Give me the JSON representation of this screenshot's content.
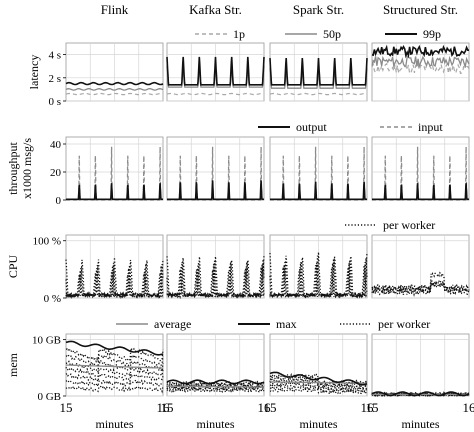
{
  "chart_data": {
    "type": "line",
    "columns": [
      "Flink",
      "Kafka Str.",
      "Spark Str.",
      "Structured Str."
    ],
    "x": {
      "label": "minutes",
      "range": [
        15,
        16
      ],
      "ticks": [
        "15",
        "16"
      ]
    },
    "rows": [
      {
        "id": "latency",
        "ylabel": "latency",
        "ylim": [
          0,
          5
        ],
        "ticks": [
          {
            "v": 0,
            "label": "0 s"
          },
          {
            "v": 2,
            "label": "2 s"
          },
          {
            "v": 4,
            "label": "4 s"
          }
        ],
        "legend": [
          {
            "name": "1p",
            "style": "dashed-light"
          },
          {
            "name": "50p",
            "style": "solid-gray"
          },
          {
            "name": "99p",
            "style": "solid-black"
          }
        ],
        "legend_placement": "top",
        "series_per_framework": [
          {
            "p1": 0.6,
            "p50": 1.0,
            "p99": 1.5,
            "pattern": "flat"
          },
          {
            "p1": 0.6,
            "p50": 1.2,
            "p99": 1.4,
            "p99_peak": 3.8,
            "p50_peak": 3.0,
            "pattern": "periodic-spikes"
          },
          {
            "p1": 0.6,
            "p50": 1.1,
            "p99": 1.4,
            "p99_peak": 3.7,
            "p50_peak": 2.8,
            "pattern": "periodic-spikes"
          },
          {
            "p1": 2.8,
            "p50": 3.4,
            "p99": 4.3,
            "pattern": "noisy-high"
          }
        ]
      },
      {
        "id": "throughput",
        "ylabel": "throughput",
        "ylabel2": "x1000 msg/s",
        "ylim": [
          0,
          45
        ],
        "ticks": [
          {
            "v": 0,
            "label": "0"
          },
          {
            "v": 20,
            "label": "20"
          },
          {
            "v": 40,
            "label": "40"
          }
        ],
        "legend": [
          {
            "name": "output",
            "style": "solid-black"
          },
          {
            "name": "input",
            "style": "dashed-gray"
          }
        ],
        "legend_placement": "top-right",
        "series_per_framework": [
          {
            "input_peak": 38,
            "output_peak": 12,
            "pattern": "bursts"
          },
          {
            "input_peak": 38,
            "output_peak": 14,
            "pattern": "bursts"
          },
          {
            "input_peak": 38,
            "output_peak": 13,
            "pattern": "bursts"
          },
          {
            "input_peak": 38,
            "output_peak": 12,
            "pattern": "bursts"
          }
        ]
      },
      {
        "id": "cpu",
        "ylabel": "CPU",
        "ylim": [
          0,
          110
        ],
        "ticks": [
          {
            "v": 0,
            "label": "0 %"
          },
          {
            "v": 100,
            "label": "100 %"
          }
        ],
        "legend": [
          {
            "name": "per worker",
            "style": "dotted-black"
          }
        ],
        "legend_placement": "top-right",
        "series_per_framework": [
          {
            "base": 5,
            "peak": 70,
            "pattern": "periodic-peaks"
          },
          {
            "base": 5,
            "peak": 75,
            "pattern": "periodic-peaks"
          },
          {
            "base": 5,
            "peak": 80,
            "pattern": "periodic-peaks"
          },
          {
            "base": 10,
            "peak": 40,
            "pattern": "low-noisy"
          }
        ]
      },
      {
        "id": "mem",
        "ylabel": "mem",
        "ylim": [
          0,
          11
        ],
        "ticks": [
          {
            "v": 0,
            "label": "0 GB"
          },
          {
            "v": 10,
            "label": "10 GB"
          }
        ],
        "legend": [
          {
            "name": "average",
            "style": "solid-gray"
          },
          {
            "name": "max",
            "style": "solid-black"
          },
          {
            "name": "per worker",
            "style": "dotted-black"
          }
        ],
        "legend_placement": "top",
        "series_per_framework": [
          {
            "max_start": 9.5,
            "max_end": 7.5,
            "worker_min": 1.5,
            "pattern": "sawtooth"
          },
          {
            "max_start": 2.5,
            "max_end": 2.5,
            "worker_min": 1.0,
            "pattern": "flat"
          },
          {
            "max_start": 4.0,
            "max_end": 2.2,
            "worker_min": 1.0,
            "pattern": "dip"
          },
          {
            "max_start": 0.4,
            "max_end": 0.4,
            "worker_min": 0.2,
            "pattern": "flat-low"
          }
        ]
      }
    ],
    "grid": true
  }
}
